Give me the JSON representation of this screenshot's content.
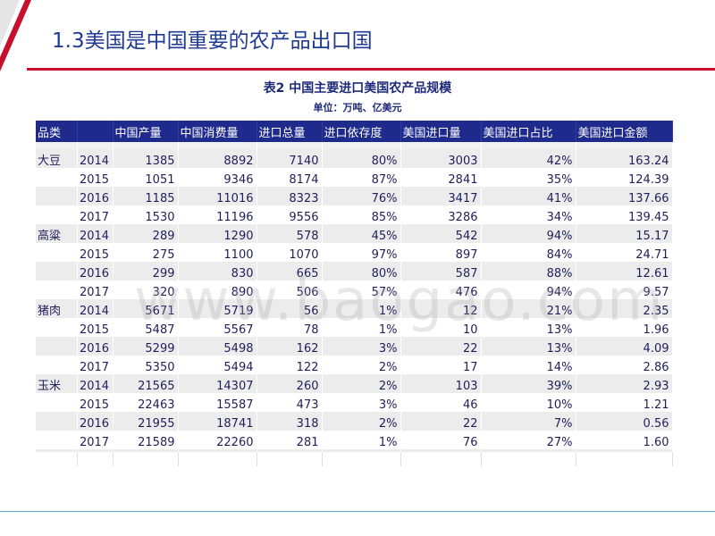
{
  "slide": {
    "title": "1.3美国是中国重要的农产品出口国"
  },
  "table": {
    "caption": "表2 中国主要进口美国农产品规模",
    "unit": "单位：万吨、亿美元",
    "headers": [
      "品类",
      "",
      "中国产量",
      "中国消费量",
      "进口总量",
      "进口依存度",
      "美国进口量",
      "美国进口占比",
      "美国进口金额"
    ],
    "rows": [
      [
        "大豆",
        "2014",
        "1385",
        "8892",
        "7140",
        "80%",
        "3003",
        "42%",
        "163.24"
      ],
      [
        "",
        "2015",
        "1051",
        "9346",
        "8174",
        "87%",
        "2841",
        "35%",
        "124.39"
      ],
      [
        "",
        "2016",
        "1185",
        "11016",
        "8323",
        "76%",
        "3417",
        "41%",
        "137.66"
      ],
      [
        "",
        "2017",
        "1530",
        "11196",
        "9556",
        "85%",
        "3286",
        "34%",
        "139.45"
      ],
      [
        "高粱",
        "2014",
        "289",
        "1290",
        "578",
        "45%",
        "542",
        "94%",
        "15.17"
      ],
      [
        "",
        "2015",
        "275",
        "1100",
        "1070",
        "97%",
        "897",
        "84%",
        "24.71"
      ],
      [
        "",
        "2016",
        "299",
        "830",
        "665",
        "80%",
        "587",
        "88%",
        "12.61"
      ],
      [
        "",
        "2017",
        "320",
        "890",
        "506",
        "57%",
        "476",
        "94%",
        "9.57"
      ],
      [
        "猪肉",
        "2014",
        "5671",
        "5719",
        "56",
        "1%",
        "12",
        "21%",
        "2.35"
      ],
      [
        "",
        "2015",
        "5487",
        "5567",
        "78",
        "1%",
        "10",
        "13%",
        "1.96"
      ],
      [
        "",
        "2016",
        "5299",
        "5498",
        "162",
        "3%",
        "22",
        "13%",
        "4.09"
      ],
      [
        "",
        "2017",
        "5350",
        "5494",
        "122",
        "2%",
        "17",
        "14%",
        "2.86"
      ],
      [
        "玉米",
        "2014",
        "21565",
        "14307",
        "260",
        "2%",
        "103",
        "39%",
        "2.93"
      ],
      [
        "",
        "2015",
        "22463",
        "15587",
        "473",
        "3%",
        "46",
        "10%",
        "1.21"
      ],
      [
        "",
        "2016",
        "21955",
        "18741",
        "318",
        "2%",
        "22",
        "7%",
        "0.56"
      ],
      [
        "",
        "2017",
        "21589",
        "22260",
        "281",
        "1%",
        "76",
        "27%",
        "1.60"
      ]
    ]
  },
  "watermark": "www.baogao.com"
}
